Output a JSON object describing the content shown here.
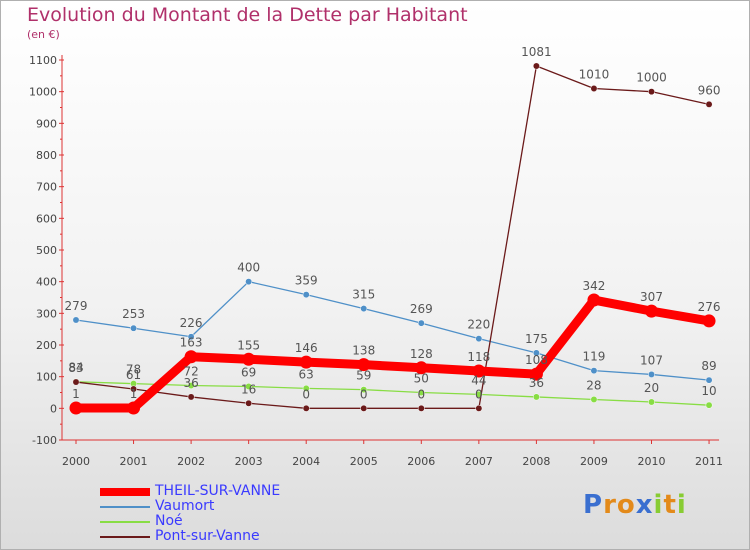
{
  "chart_data": {
    "type": "line",
    "title": "Evolution du Montant de la Dette par Habitant",
    "subtitle": "(en €)",
    "categories": [
      "2000",
      "2001",
      "2002",
      "2003",
      "2004",
      "2005",
      "2006",
      "2007",
      "2008",
      "2009",
      "2010",
      "2011"
    ],
    "ylim": [
      -100,
      1100
    ],
    "yticks": [
      -100,
      0,
      100,
      200,
      300,
      400,
      500,
      600,
      700,
      800,
      900,
      1000,
      1100
    ],
    "grid": false,
    "legend_position": "bottom-left",
    "series": [
      {
        "name": "THEIL-SUR-VANNE",
        "values": [
          1,
          1,
          163,
          155,
          146,
          138,
          128,
          118,
          108,
          342,
          307,
          276
        ],
        "color": "#ff0000"
      },
      {
        "name": "Vaumort",
        "values": [
          279,
          253,
          226,
          400,
          359,
          315,
          269,
          220,
          175,
          119,
          107,
          89
        ],
        "color": "#4f90c8"
      },
      {
        "name": "Noé",
        "values": [
          84,
          78,
          72,
          69,
          63,
          59,
          50,
          44,
          36,
          28,
          20,
          10
        ],
        "color": "#88dd44"
      },
      {
        "name": "Pont-sur-Vanne",
        "values": [
          83,
          61,
          36,
          16,
          0,
          0,
          0,
          0,
          1081,
          1010,
          1000,
          960
        ],
        "color": "#6b1a1a"
      }
    ]
  },
  "logo": {
    "letters": [
      "P",
      "r",
      "o",
      "x",
      "i",
      "t",
      "i"
    ],
    "colors": [
      "#3a6fd0",
      "#e38a1a",
      "#e38a1a",
      "#3a6fd0",
      "#88cc33",
      "#e38a1a",
      "#88cc33"
    ]
  }
}
